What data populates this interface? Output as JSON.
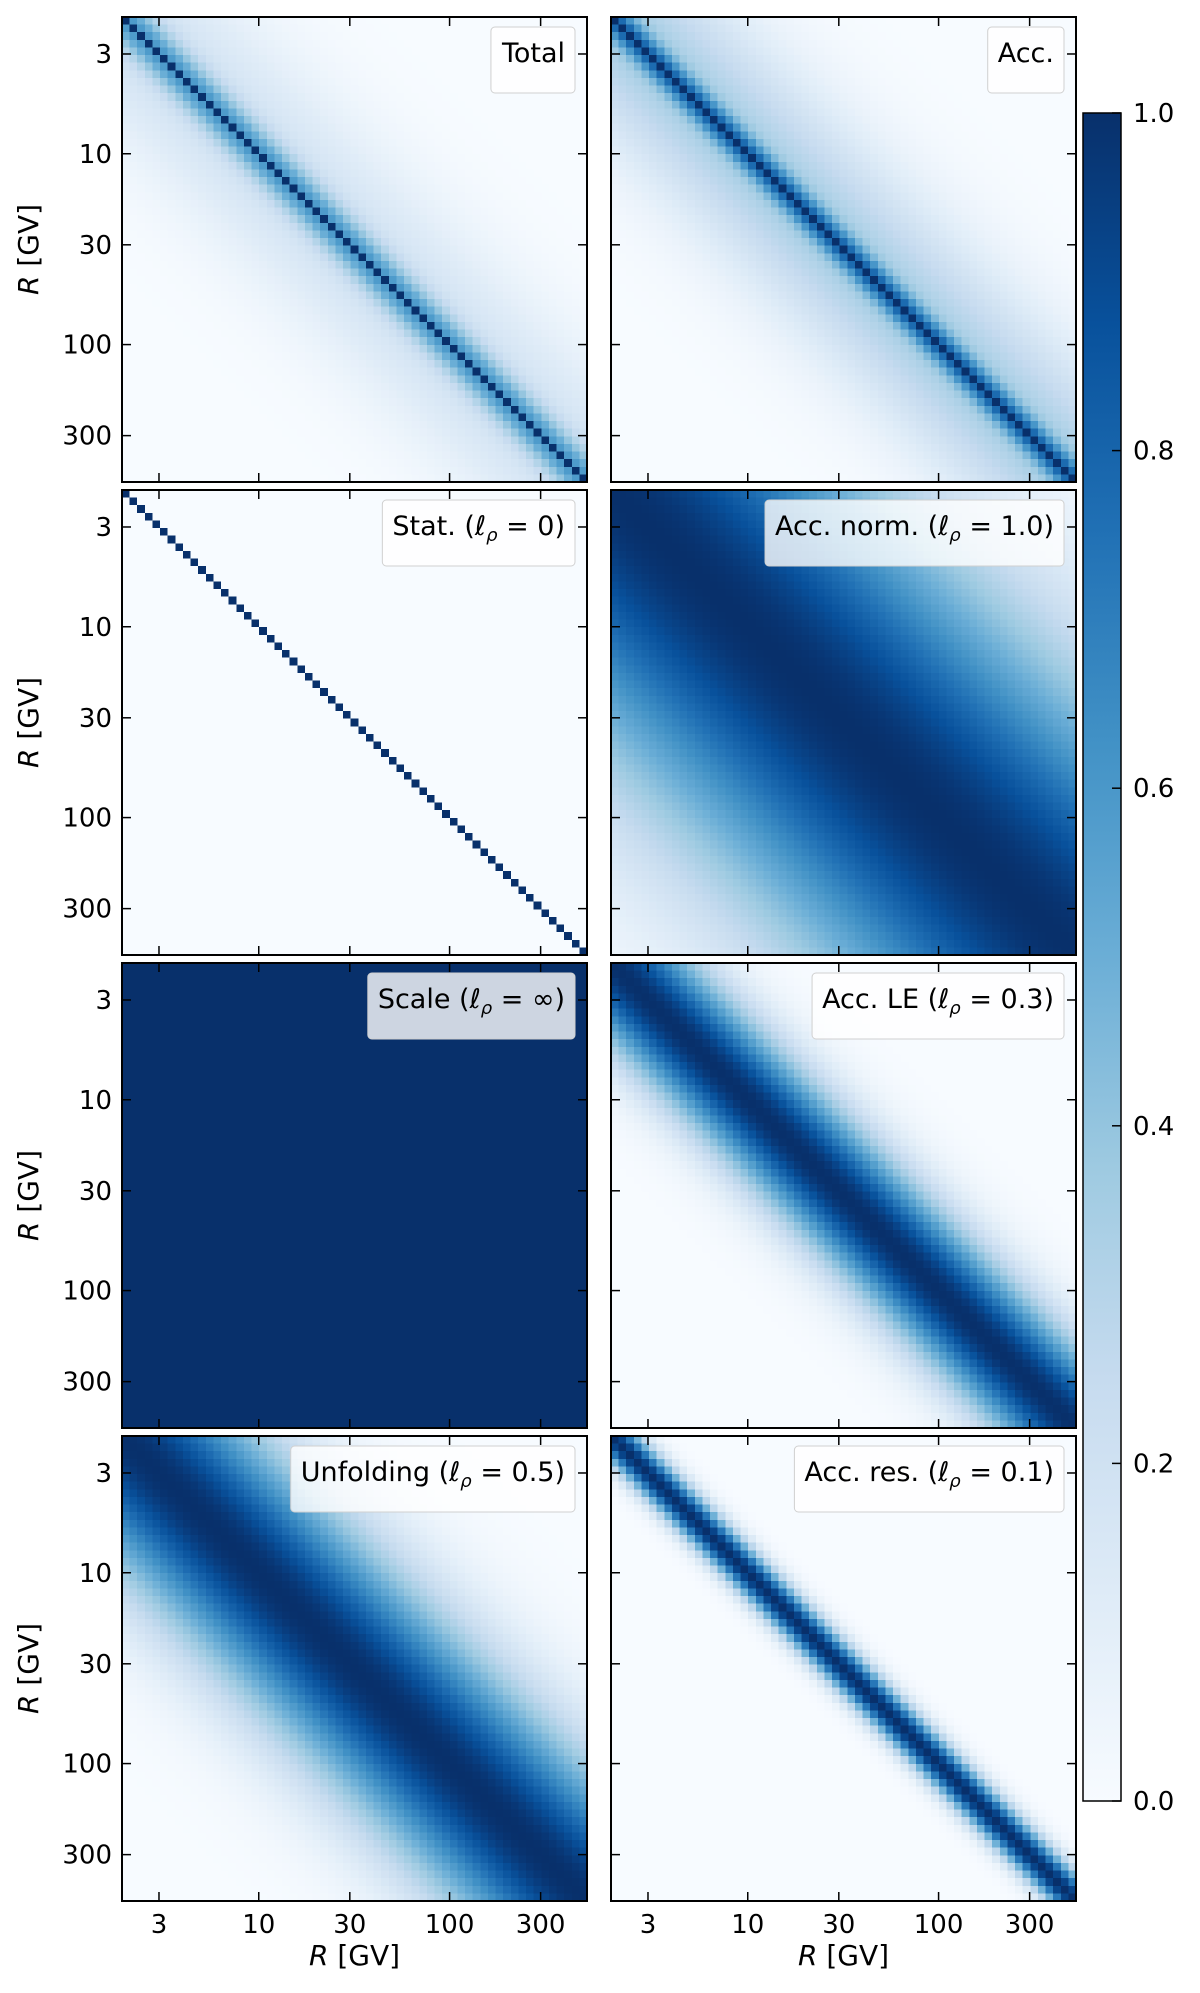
{
  "chart_data": [
    {
      "type": "heatmap",
      "label": "Total",
      "label_prefix": "",
      "label_ell": "",
      "label_suffix": "",
      "correlation": {
        "kind": "total"
      }
    },
    {
      "type": "heatmap",
      "label": "Acc.",
      "label_prefix": "",
      "label_ell": "",
      "label_suffix": "",
      "correlation": {
        "kind": "acc"
      }
    },
    {
      "type": "heatmap",
      "label": "Stat.  (ℓρ = 0)",
      "label_prefix": "Stat.  (",
      "label_ell": "ℓ",
      "label_suffix": " = 0)",
      "correlation": {
        "kind": "gaussian",
        "length": 0
      }
    },
    {
      "type": "heatmap",
      "label": "Acc. norm.  (ℓρ = 1.0)",
      "label_prefix": "Acc. norm.  (",
      "label_ell": "ℓ",
      "label_suffix": " = 1.0)",
      "correlation": {
        "kind": "gaussian",
        "length": 1.0
      }
    },
    {
      "type": "heatmap",
      "label": "Scale  (ℓρ = ∞)",
      "label_prefix": "Scale  (",
      "label_ell": "ℓ",
      "label_suffix": " = ∞)",
      "correlation": {
        "kind": "constant"
      }
    },
    {
      "type": "heatmap",
      "label": "Acc. LE  (ℓρ = 0.3)",
      "label_prefix": "Acc. LE  (",
      "label_ell": "ℓ",
      "label_suffix": " = 0.3)",
      "correlation": {
        "kind": "gaussian",
        "length": 0.3
      }
    },
    {
      "type": "heatmap",
      "label": "Unfolding  (ℓρ = 0.5)",
      "label_prefix": "Unfolding  (",
      "label_ell": "ℓ",
      "label_suffix": " = 0.5)",
      "correlation": {
        "kind": "gaussian",
        "length": 0.5
      }
    },
    {
      "type": "heatmap",
      "label": "Acc. res.  (ℓρ = 0.1)",
      "label_prefix": "Acc. res.  (",
      "label_ell": "ℓ",
      "label_suffix": " = 0.1)",
      "correlation": {
        "kind": "gaussian",
        "length": 0.1
      }
    }
  ],
  "axes": {
    "xlabel_var": "R",
    "xlabel_unit": " [GV]",
    "ylabel_var": "R",
    "ylabel_unit": " [GV]",
    "scale": "log",
    "range_gv": [
      1.92,
      525
    ],
    "ticks": [
      3,
      10,
      30,
      100,
      300
    ],
    "tick_labels": [
      "3",
      "10",
      "30",
      "100",
      "300"
    ],
    "bins": 61
  },
  "colorbar": {
    "colormap": "Blues",
    "range": [
      0.0,
      1.0
    ],
    "ticks": [
      0.0,
      0.2,
      0.4,
      0.6,
      0.8,
      1.0
    ],
    "tick_labels": [
      "0.0",
      "0.2",
      "0.4",
      "0.6",
      "0.8",
      "1.0"
    ]
  },
  "colors": {
    "low": "#f7fbff",
    "high": "#08306b"
  },
  "legend_placement": "top-right"
}
